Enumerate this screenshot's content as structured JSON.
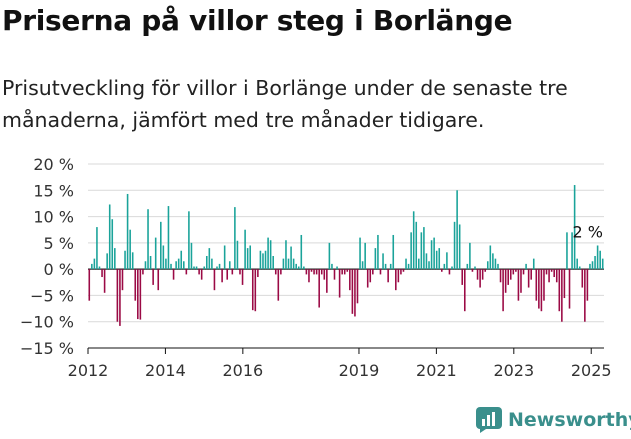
{
  "title": "Priserna på villor steg i Borlänge",
  "subtitle": "Prisutveckling för villor i Borlänge under de senaste tre månaderna, jämfört med tre månader tidigare.",
  "brand": {
    "name": "Newsworthy",
    "logo_icon": "bar-chart-icon"
  },
  "colors": {
    "positive": "#1aa39a",
    "negative": "#9b0a45",
    "text": "#222222",
    "axis": "#111111"
  },
  "chart_data": {
    "type": "bar",
    "title": "Priserna på villor steg i Borlänge",
    "xlabel": "",
    "ylabel": "",
    "ylim": [
      -15,
      20
    ],
    "yticks": [
      20,
      15,
      10,
      5,
      0,
      -5,
      -10,
      -15
    ],
    "ytick_labels": [
      "20 %",
      "15 %",
      "10 %",
      "5 %",
      "0 %",
      "−5 %",
      "−10 %",
      "−15 %"
    ],
    "x_start": 2012.0,
    "x_end": 2025.33,
    "xtick_labels": [
      "2012",
      "2014",
      "2016",
      "2019",
      "2021",
      "2023",
      "2025"
    ],
    "xtick_values": [
      2012,
      2014,
      2016,
      2019,
      2021,
      2023,
      2025
    ],
    "grid": true,
    "annotation": {
      "text": "2 %",
      "value": 2
    },
    "values": [
      -6,
      1,
      2,
      8,
      0.5,
      -1.5,
      -4.5,
      3,
      12.3,
      9.5,
      4,
      -10,
      -10.8,
      -4,
      3.5,
      14.3,
      7.5,
      3.2,
      -6,
      -9.5,
      -9.6,
      -1,
      1.5,
      11.4,
      2.5,
      -3,
      6,
      -4,
      9,
      4.5,
      2,
      12,
      1,
      -2,
      1.5,
      2,
      3.5,
      1.5,
      -1,
      11,
      5,
      0.5,
      0.5,
      -1,
      -2,
      0.5,
      2.5,
      4,
      2,
      -4,
      0.5,
      1,
      -2.5,
      4.5,
      -2,
      1.5,
      -1,
      11.8,
      5.4,
      -1,
      -3,
      7.5,
      4,
      4.5,
      -7.8,
      -8,
      -1.5,
      3.5,
      3,
      3.5,
      6,
      5.5,
      2.5,
      -1,
      -6,
      -1,
      2,
      5.5,
      2,
      4.3,
      2,
      1,
      0.5,
      6.5,
      0.5,
      -1,
      -2.5,
      -0.5,
      -1,
      -1,
      -7.3,
      -1,
      -2,
      -4.5,
      5,
      1,
      -2,
      0.5,
      -5.4,
      -1,
      -1,
      -0.5,
      -4,
      -8.5,
      -9,
      -6.5,
      6,
      1.5,
      5,
      -3.5,
      -2.5,
      -1,
      4,
      6.5,
      -1,
      3,
      1,
      -2.5,
      1,
      6.5,
      -4,
      -2.5,
      -1,
      -0.5,
      2,
      1,
      7,
      11,
      9,
      2,
      7,
      8,
      3,
      1.5,
      5.5,
      6,
      3.5,
      4,
      -0.5,
      1,
      3.2,
      -1,
      0.5,
      9,
      15,
      8.5,
      -3,
      -8,
      1,
      5,
      -0.5,
      0.5,
      -2,
      -3.5,
      -2,
      -0.5,
      1.5,
      4.5,
      3,
      2,
      1,
      -2.5,
      -8,
      -4.5,
      -3,
      -2,
      -1,
      -0.5,
      -6,
      -4.5,
      -1,
      1,
      -3.5,
      -2,
      2,
      -6,
      -7.5,
      -8,
      -6,
      -1,
      -2.5,
      -0.5,
      -1.5,
      -2.5,
      -8,
      -10,
      -5.5,
      7,
      -7.5,
      7,
      16,
      2,
      0.5,
      -3.5,
      -10,
      -6,
      1,
      1.5,
      2.5,
      4.5,
      3.5,
      2
    ]
  }
}
